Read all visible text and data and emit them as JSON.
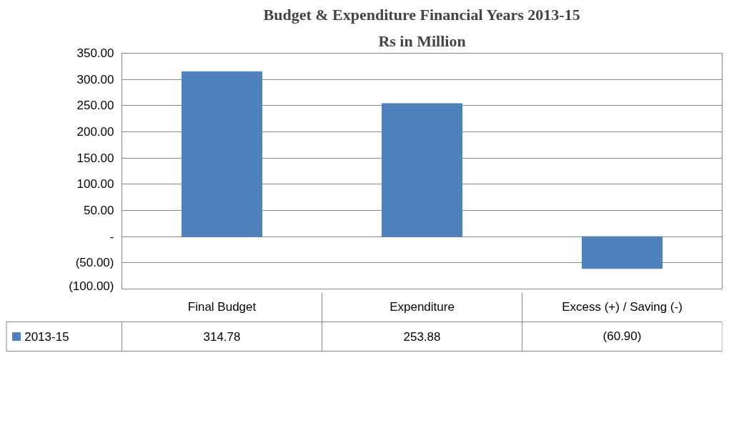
{
  "chart_data": {
    "type": "bar",
    "title": "Budget & Expenditure Financial Years 2013-15",
    "subtitle": "Rs in Million",
    "categories": [
      "Final Budget",
      "Expenditure",
      "Excess (+) / Saving (-)"
    ],
    "series": [
      {
        "name": "2013-15",
        "color": "#4f81bd",
        "values": [
          314.78,
          253.88,
          -60.9
        ],
        "value_labels": [
          "314.78",
          "253.88",
          "(60.90)"
        ]
      }
    ],
    "ylim": [
      -100,
      350
    ],
    "yticks": [
      {
        "value": -100,
        "label": "(100.00)"
      },
      {
        "value": -50,
        "label": "(50.00)"
      },
      {
        "value": 0,
        "label": "-"
      },
      {
        "value": 50,
        "label": "50.00"
      },
      {
        "value": 100,
        "label": "100.00"
      },
      {
        "value": 150,
        "label": "150.00"
      },
      {
        "value": 200,
        "label": "200.00"
      },
      {
        "value": 250,
        "label": "250.00"
      },
      {
        "value": 300,
        "label": "300.00"
      },
      {
        "value": 350,
        "label": "350.00"
      }
    ],
    "grid": "y",
    "legend": "bottom"
  }
}
